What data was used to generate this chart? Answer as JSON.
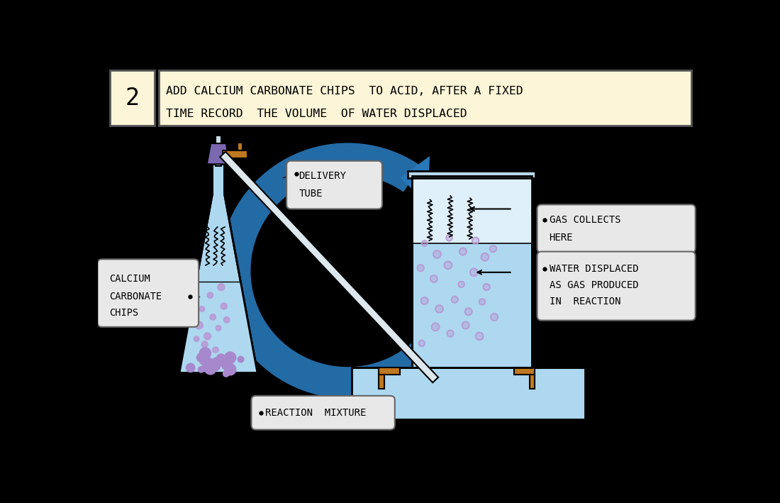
{
  "bg_color": "#000000",
  "title_box_color": "#fdf5d8",
  "title_num": "2",
  "title_text_line1": "ADD CALCIUM CARBONATE CHIPS  TO ACID, AFTER A FIXED",
  "title_text_line2": "TIME RECORD  THE VOLUME  OF WATER DISPLACED",
  "label_box_color": "#e8e8e8",
  "water_color": "#add8f0",
  "water_light": "#dff0fb",
  "flask_color": "#add8f0",
  "bubble_color": "#b899d4",
  "arrow_color": "#2878b8",
  "stopper_color": "#7b68b0",
  "tap_color": "#c07820",
  "beaker_stand_color": "#c07820",
  "font_family": "monospace"
}
